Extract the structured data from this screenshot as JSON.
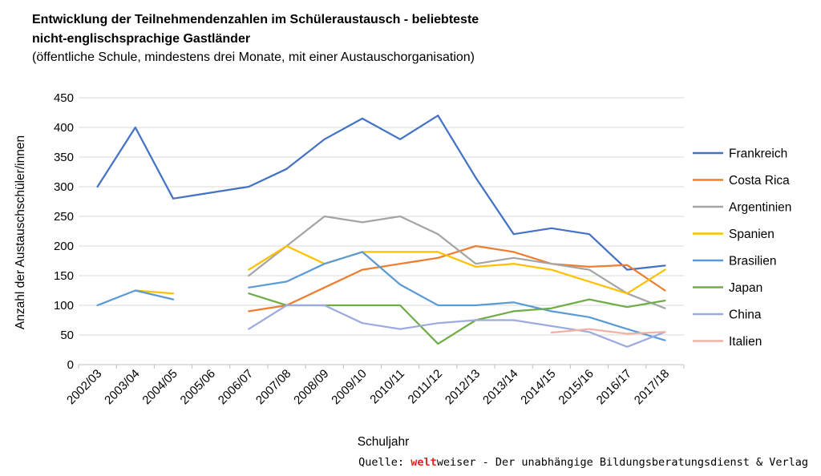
{
  "chart_data": {
    "type": "line",
    "title_line1": "Entwicklung der Teilnehmendenzahlen im Schüleraustausch - beliebteste",
    "title_line2": "nicht-englischsprachige Gastländer",
    "subtitle": "(öffentliche Schule, mindestens drei Monate, mit einer Austauschorganisation)",
    "xlabel": "Schuljahr",
    "ylabel": "Anzahl der Austauschschüler/innen",
    "ylim": [
      0,
      450
    ],
    "yticks": [
      0,
      50,
      100,
      150,
      200,
      250,
      300,
      350,
      400,
      450
    ],
    "grid": true,
    "legend_position": "right",
    "categories": [
      "2002/03",
      "2003/04",
      "2004/05",
      "2005/06",
      "2006/07",
      "2007/08",
      "2008/09",
      "2009/10",
      "2010/11",
      "2011/12",
      "2012/13",
      "2013/14",
      "2014/15",
      "2015/16",
      "2016/17",
      "2017/18"
    ],
    "series": [
      {
        "name": "Frankreich",
        "color": "#4472c4",
        "values": [
          300,
          400,
          280,
          290,
          300,
          330,
          380,
          415,
          380,
          420,
          315,
          220,
          230,
          220,
          160,
          167
        ]
      },
      {
        "name": "Costa Rica",
        "color": "#ed7d31",
        "values": [
          null,
          null,
          null,
          null,
          90,
          100,
          130,
          160,
          170,
          180,
          200,
          190,
          170,
          165,
          168,
          125
        ]
      },
      {
        "name": "Argentinien",
        "color": "#a5a5a5",
        "values": [
          null,
          null,
          null,
          null,
          150,
          200,
          250,
          240,
          250,
          220,
          170,
          180,
          170,
          160,
          120,
          95
        ]
      },
      {
        "name": "Spanien",
        "color": "#ffc000",
        "values": [
          null,
          125,
          120,
          null,
          160,
          200,
          170,
          190,
          190,
          190,
          165,
          170,
          160,
          140,
          120,
          160
        ]
      },
      {
        "name": "Brasilien",
        "color": "#5b9bd5",
        "values": [
          100,
          125,
          110,
          null,
          130,
          140,
          170,
          190,
          135,
          100,
          100,
          105,
          90,
          80,
          60,
          41
        ]
      },
      {
        "name": "Japan",
        "color": "#70ad47",
        "values": [
          null,
          null,
          null,
          null,
          120,
          100,
          100,
          100,
          100,
          35,
          75,
          90,
          95,
          110,
          97,
          108
        ]
      },
      {
        "name": "China",
        "color": "#9dabde",
        "values": [
          null,
          null,
          null,
          null,
          60,
          100,
          100,
          70,
          60,
          70,
          75,
          75,
          65,
          55,
          30,
          55
        ]
      },
      {
        "name": "Italien",
        "color": "#f4b0a4",
        "values": [
          null,
          null,
          null,
          null,
          null,
          null,
          null,
          null,
          null,
          null,
          null,
          null,
          54,
          60,
          52,
          55
        ]
      }
    ]
  },
  "source": {
    "prefix": "Quelle: ",
    "brand_bold": "welt",
    "brand_rest": "weiser",
    "suffix": " - Der unabhängige Bildungsberatungsdienst & Verlag"
  }
}
